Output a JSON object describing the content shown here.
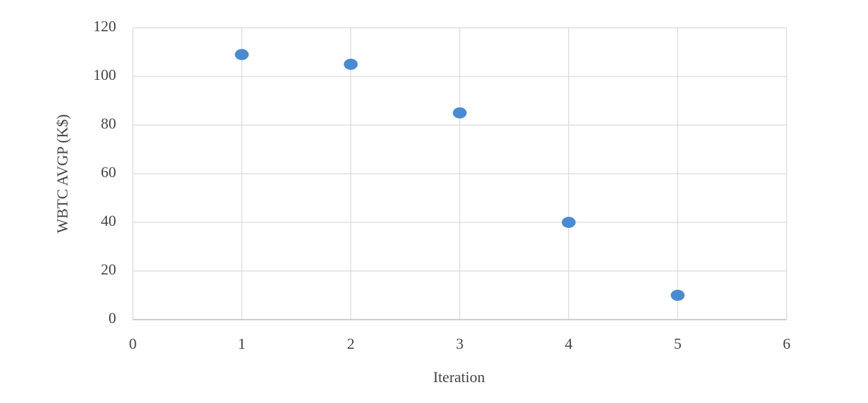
{
  "chart_data": {
    "type": "scatter",
    "x_label": "Iteration",
    "y_label": "WBTC AVGP (K$)",
    "x": [
      1,
      2,
      3,
      4,
      5
    ],
    "values": [
      109,
      105,
      85,
      40,
      10
    ],
    "color": "#4a8bd0",
    "xlim": [
      0,
      6
    ],
    "xticks": [
      0,
      1,
      2,
      3,
      4,
      5,
      6
    ],
    "ylim": [
      0,
      120
    ],
    "yticks": [
      0,
      20,
      40,
      60,
      80,
      100,
      120
    ],
    "grid": true
  }
}
